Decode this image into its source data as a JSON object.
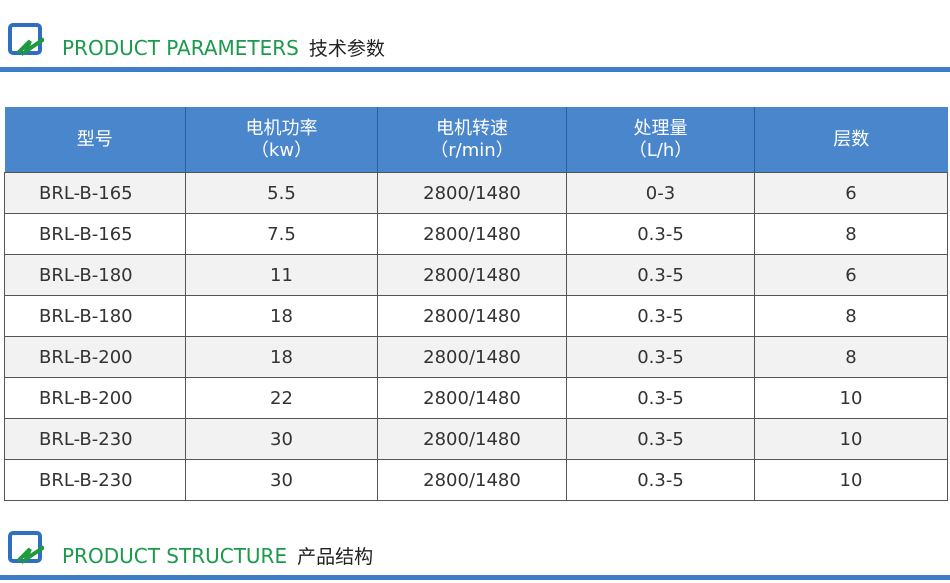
{
  "sections": [
    {
      "title_en": "PRODUCT PARAMETERS",
      "title_cn": "技术参数"
    },
    {
      "title_en": "PRODUCT STRUCTURE",
      "title_cn": "产品结构"
    }
  ],
  "colors": {
    "accent_blue": "#4a86cc",
    "title_green": "#1a9a4a"
  },
  "table": {
    "headers": [
      {
        "l1": "型号",
        "l2": ""
      },
      {
        "l1": "电机功率",
        "l2": "（kw）"
      },
      {
        "l1": "电机转速",
        "l2": "（r/min）"
      },
      {
        "l1": "处理量",
        "l2": "（L/h）"
      },
      {
        "l1": "层数",
        "l2": ""
      }
    ],
    "rows": [
      [
        "BRL-B-165",
        "5.5",
        "2800/1480",
        "0-3",
        "6"
      ],
      [
        "BRL-B-165",
        "7.5",
        "2800/1480",
        "0.3-5",
        "8"
      ],
      [
        "BRL-B-180",
        "11",
        "2800/1480",
        "0.3-5",
        "6"
      ],
      [
        "BRL-B-180",
        "18",
        "2800/1480",
        "0.3-5",
        "8"
      ],
      [
        "BRL-B-200",
        "18",
        "2800/1480",
        "0.3-5",
        "8"
      ],
      [
        "BRL-B-200",
        "22",
        "2800/1480",
        "0.3-5",
        "10"
      ],
      [
        "BRL-B-230",
        "30",
        "2800/1480",
        "0.3-5",
        "10"
      ],
      [
        "BRL-B-230",
        "30",
        "2800/1480",
        "0.3-5",
        "10"
      ]
    ]
  }
}
